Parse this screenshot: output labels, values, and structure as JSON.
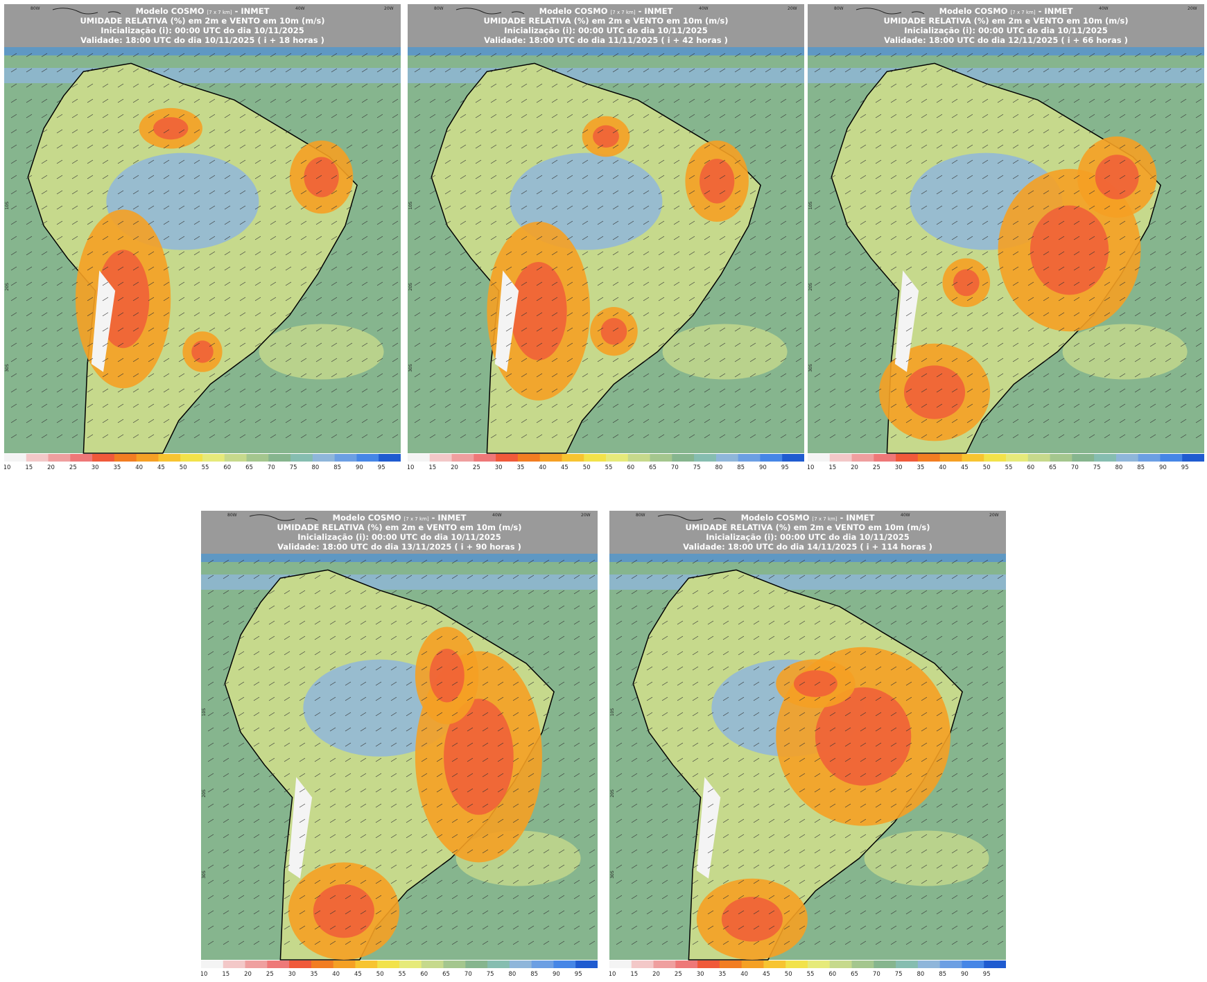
{
  "colorbar": {
    "levels": [
      10,
      15,
      20,
      25,
      30,
      35,
      40,
      45,
      50,
      55,
      60,
      65,
      70,
      75,
      80,
      85,
      90,
      95
    ],
    "colors": [
      "#f4f4f4",
      "#f3c8c8",
      "#ef9f9f",
      "#ee7878",
      "#f0593a",
      "#f27d22",
      "#f5a024",
      "#f7c431",
      "#f2e24a",
      "#e6ea7a",
      "#c6d98c",
      "#a4c68e",
      "#86b58e",
      "#86bdb0",
      "#8fb6da",
      "#6c9fe3",
      "#4686e6",
      "#1f5bd0"
    ]
  },
  "map_labels": {
    "top": [
      "80W",
      "40W",
      "20W"
    ],
    "left": [
      "10S",
      "20S",
      "30S"
    ]
  },
  "panels": [
    {
      "model": "Modelo COSMO",
      "resolution": "[7 x 7 km]",
      "source": "- INMET",
      "variable": "UMIDADE RELATIVA (%) em 2m e VENTO em 10m (m/s)",
      "init": "Inicialização (i): 00:00 UTC do dia 10/11/2025",
      "valid": "Validade: 18:00 UTC do dia 10/11/2025 ( i + 18 horas )"
    },
    {
      "model": "Modelo COSMO",
      "resolution": "[7 x 7 km]",
      "source": "- INMET",
      "variable": "UMIDADE RELATIVA (%) em 2m e VENTO em 10m (m/s)",
      "init": "Inicialização (i): 00:00 UTC do dia 10/11/2025",
      "valid": "Validade: 18:00 UTC do dia 11/11/2025 ( i + 42 horas )"
    },
    {
      "model": "Modelo COSMO",
      "resolution": "[7 x 7 km]",
      "source": "- INMET",
      "variable": "UMIDADE RELATIVA (%) em 2m e VENTO em 10m (m/s)",
      "init": "Inicialização (i): 00:00 UTC do dia 10/11/2025",
      "valid": "Validade: 18:00 UTC do dia 12/11/2025 ( i + 66 horas )"
    },
    {
      "model": "Modelo COSMO",
      "resolution": "[7 x 7 km]",
      "source": "- INMET",
      "variable": "UMIDADE RELATIVA (%) em 2m e VENTO em 10m (m/s)",
      "init": "Inicialização (i): 00:00 UTC do dia 10/11/2025",
      "valid": "Validade: 18:00 UTC do dia 13/11/2025 ( i + 90 horas )"
    },
    {
      "model": "Modelo COSMO",
      "resolution": "[7 x 7 km]",
      "source": "- INMET",
      "variable": "UMIDADE RELATIVA (%) em 2m e VENTO em 10m (m/s)",
      "init": "Inicialização (i): 00:00 UTC do dia 10/11/2025",
      "valid": "Validade: 18:00 UTC do dia 14/11/2025 ( i + 114 horas )"
    }
  ]
}
